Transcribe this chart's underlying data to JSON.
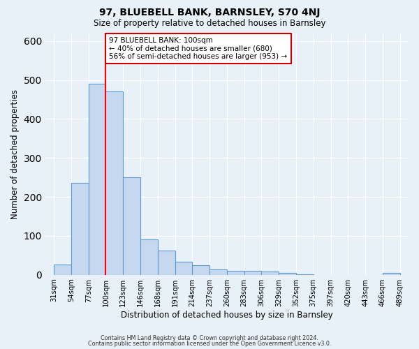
{
  "title": "97, BLUEBELL BANK, BARNSLEY, S70 4NJ",
  "subtitle": "Size of property relative to detached houses in Barnsley",
  "xlabel": "Distribution of detached houses by size in Barnsley",
  "ylabel": "Number of detached properties",
  "bar_values": [
    27,
    235,
    490,
    470,
    250,
    90,
    62,
    33,
    25,
    14,
    10,
    10,
    8,
    5,
    2,
    0,
    0,
    0,
    0,
    5
  ],
  "tick_labels": [
    "31sqm",
    "54sqm",
    "77sqm",
    "100sqm",
    "123sqm",
    "146sqm",
    "168sqm",
    "191sqm",
    "214sqm",
    "237sqm",
    "260sqm",
    "283sqm",
    "306sqm",
    "329sqm",
    "352sqm",
    "375sqm",
    "397sqm",
    "420sqm",
    "443sqm",
    "466sqm",
    "489sqm"
  ],
  "bar_color": "#c5d8f0",
  "bar_edge_color": "#5b9bd5",
  "annotation_title": "97 BLUEBELL BANK: 100sqm",
  "annotation_line1": "← 40% of detached houses are smaller (680)",
  "annotation_line2": "56% of semi-detached houses are larger (953) →",
  "annotation_box_color": "#ffffff",
  "annotation_box_edge": "#cc0000",
  "ylim": [
    0,
    620
  ],
  "xlim_left": -0.5,
  "xlim_right": 20.5,
  "background_color": "#e8f0f8",
  "grid_color": "#ffffff",
  "footer1": "Contains HM Land Registry data © Crown copyright and database right 2024.",
  "footer2": "Contains public sector information licensed under the Open Government Licence v3.0."
}
